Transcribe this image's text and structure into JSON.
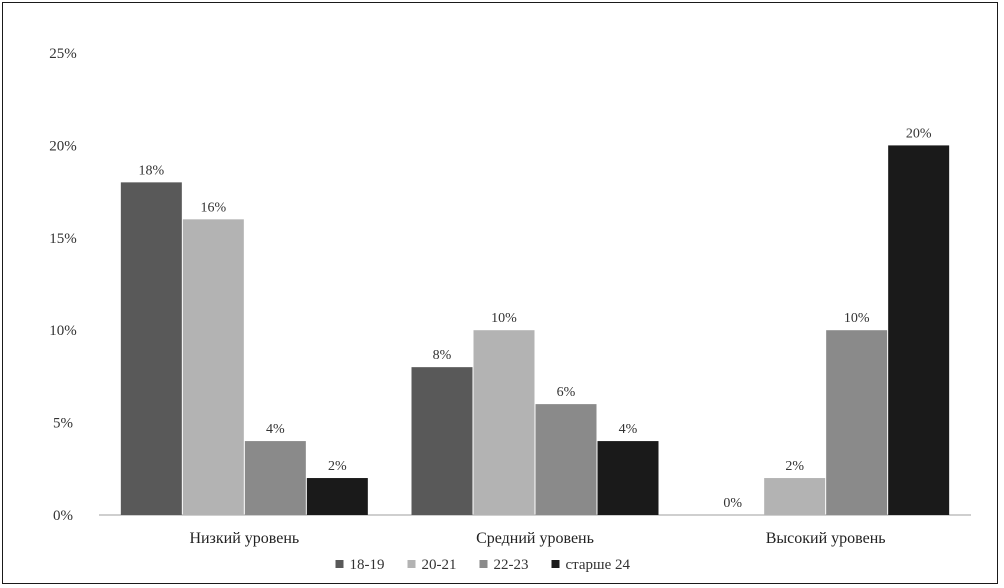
{
  "chart_data": {
    "type": "bar",
    "categories": [
      "Низкий уровень",
      "Средний уровень",
      "Высокий уровень"
    ],
    "series": [
      {
        "name": "18-19",
        "values": [
          18,
          8,
          0
        ],
        "color": "#595959"
      },
      {
        "name": "20-21",
        "values": [
          16,
          10,
          2
        ],
        "color": "#b3b3b3"
      },
      {
        "name": "22-23",
        "values": [
          4,
          6,
          10
        ],
        "color": "#8a8a8a"
      },
      {
        "name": "старше 24",
        "values": [
          2,
          4,
          20
        ],
        "color": "#1a1a1a"
      }
    ],
    "y_ticks": [
      "0%",
      "5%",
      "10%",
      "15%",
      "20%",
      "25%"
    ],
    "data_labels": [
      [
        "18%",
        "8%",
        "0%"
      ],
      [
        "16%",
        "10%",
        "2%"
      ],
      [
        "4%",
        "6%",
        "10%"
      ],
      [
        "2%",
        "4%",
        "20%"
      ]
    ],
    "ylim": [
      0,
      25
    ],
    "grid": false,
    "legend_position": "bottom"
  }
}
